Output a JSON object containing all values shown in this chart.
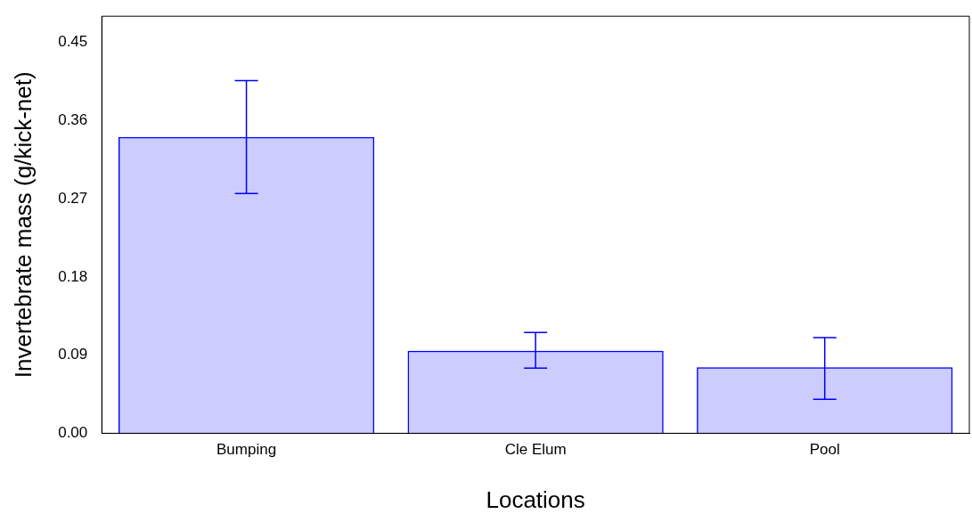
{
  "chart_data": {
    "type": "bar",
    "xlabel": "Locations",
    "ylabel": "Invertebrate mass (g/kick-net)",
    "categories": [
      "Bumping",
      "Cle Elum",
      "Pool"
    ],
    "values": [
      0.341,
      0.095,
      0.076
    ],
    "errors": [
      [
        0.276,
        0.406
      ],
      [
        0.075,
        0.116
      ],
      [
        0.039,
        0.11
      ]
    ],
    "color": "#0000ff",
    "ylim": [
      0,
      0.48
    ],
    "yticks": [
      {
        "value": 0,
        "label": "0.00"
      },
      {
        "value": 0.09,
        "label": "0.09"
      },
      {
        "value": 0.18,
        "label": "0.18"
      },
      {
        "value": 0.27,
        "label": "0.27"
      },
      {
        "value": 0.36,
        "label": "0.36"
      },
      {
        "value": 0.45,
        "label": "0.45"
      }
    ],
    "grid": false,
    "legend": false
  }
}
